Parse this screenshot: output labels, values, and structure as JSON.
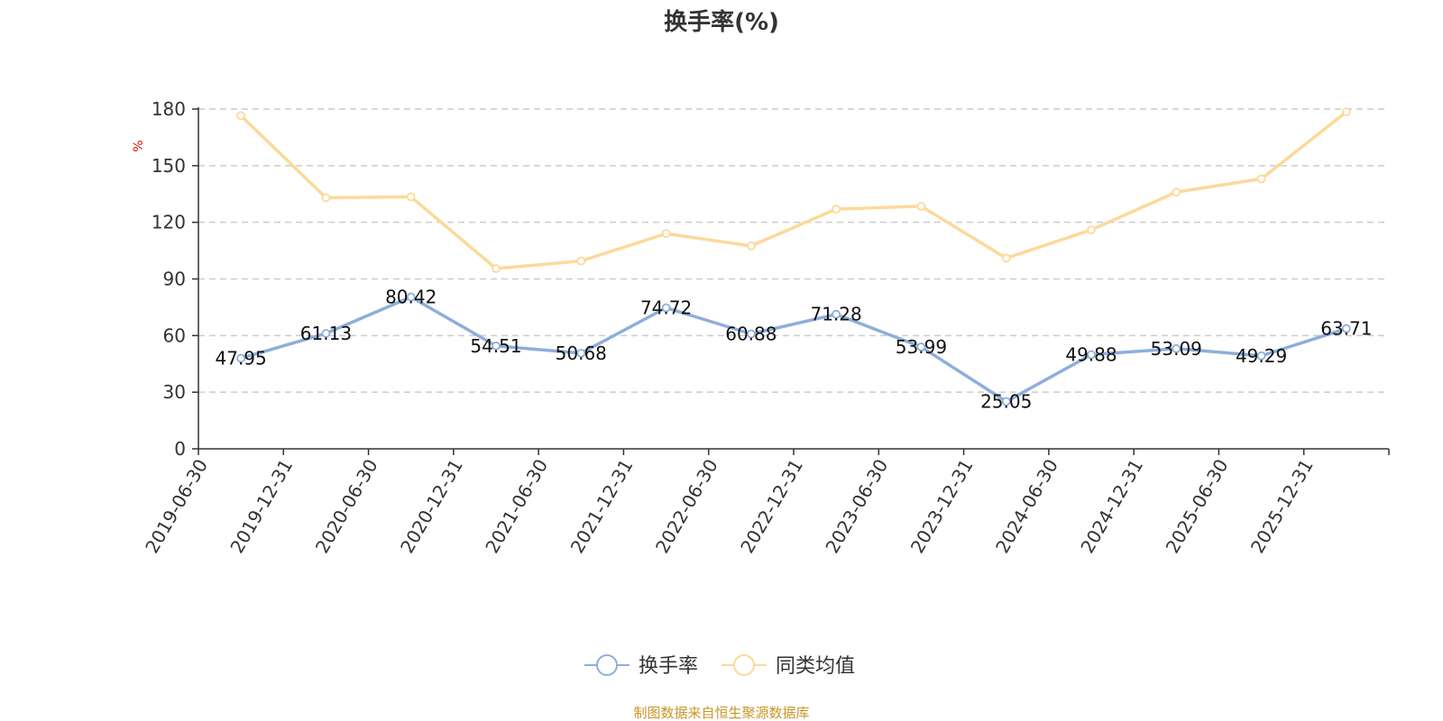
{
  "chart_data": {
    "type": "line",
    "title": "换手率(%)",
    "ylabel": "%",
    "ylim": [
      0,
      180
    ],
    "yticks": [
      0,
      30,
      60,
      90,
      120,
      150,
      180
    ],
    "categories": [
      "2019-06-30",
      "2019-12-31",
      "2020-06-30",
      "2020-12-31",
      "2021-06-30",
      "2021-12-31",
      "2022-06-30",
      "2022-12-31",
      "2023-06-30",
      "2023-12-31",
      "2024-06-30",
      "2024-12-31",
      "2025-06-30",
      "2025-12-31"
    ],
    "series": [
      {
        "name": "换手率",
        "color": "#8eaedb",
        "show_labels": true,
        "labels": [
          "47.95",
          "61.13",
          "80.42",
          "54.51",
          "50.68",
          "74.72",
          "60.88",
          "71.28",
          "53.99",
          "25.05",
          "49.88",
          "53.09",
          "49.29",
          "63.71"
        ],
        "values": [
          47.95,
          61.13,
          80.42,
          54.51,
          50.68,
          74.72,
          60.88,
          71.28,
          53.99,
          25.05,
          49.88,
          53.09,
          49.29,
          63.71
        ]
      },
      {
        "name": "同类均值",
        "color": "#fcd99a",
        "show_labels": false,
        "values": [
          176.5,
          133,
          133.5,
          95.5,
          99.5,
          114,
          107.5,
          127,
          128.5,
          101,
          116,
          136,
          143,
          178.5
        ]
      }
    ],
    "grid": true,
    "legend_position": "bottom-center",
    "source": "制图数据来自恒生聚源数据库"
  }
}
